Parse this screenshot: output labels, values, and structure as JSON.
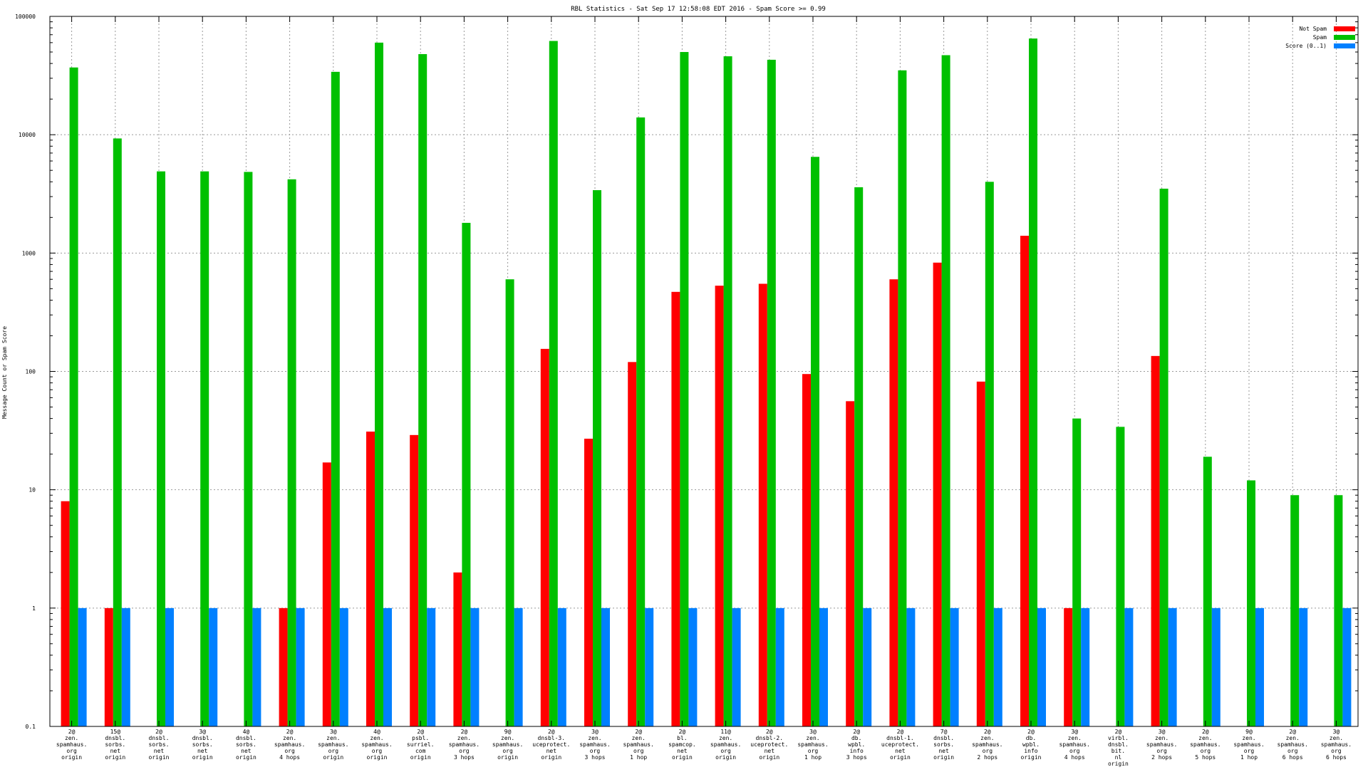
{
  "chart_data": {
    "type": "bar",
    "title": "RBL Statistics - Sat Sep 17 12:58:08 EDT 2016 - Spam Score >= 0.99",
    "ylabel": "Message Count or Spam Score",
    "xlabel": "",
    "yscale": "log",
    "ylim": [
      0.1,
      100000
    ],
    "yticks": [
      {
        "value": 0.1,
        "label": "0.1"
      },
      {
        "value": 1,
        "label": "1"
      },
      {
        "value": 10,
        "label": "10"
      },
      {
        "value": 100,
        "label": "100"
      },
      {
        "value": 1000,
        "label": "1000"
      },
      {
        "value": 10000,
        "label": "10000"
      },
      {
        "value": 100000,
        "label": "100000"
      }
    ],
    "grid": true,
    "legend_position": "top-right",
    "categories": [
      [
        "2@",
        "zen.",
        "spamhaus.",
        "org",
        "origin"
      ],
      [
        "15@",
        "dnsbl.",
        "sorbs.",
        "net",
        "origin"
      ],
      [
        "2@",
        "dnsbl.",
        "sorbs.",
        "net",
        "origin"
      ],
      [
        "3@",
        "dnsbl.",
        "sorbs.",
        "net",
        "origin"
      ],
      [
        "4@",
        "dnsbl.",
        "sorbs.",
        "net",
        "origin"
      ],
      [
        "2@",
        "zen.",
        "spamhaus.",
        "org",
        "4 hops"
      ],
      [
        "3@",
        "zen.",
        "spamhaus.",
        "org",
        "origin"
      ],
      [
        "4@",
        "zen.",
        "spamhaus.",
        "org",
        "origin"
      ],
      [
        "2@",
        "psbl.",
        "surriel.",
        "com",
        "origin"
      ],
      [
        "2@",
        "zen.",
        "spamhaus.",
        "org",
        "3 hops"
      ],
      [
        "9@",
        "zen.",
        "spamhaus.",
        "org",
        "origin"
      ],
      [
        "2@",
        "dnsbl-3.",
        "uceprotect.",
        "net",
        "origin"
      ],
      [
        "3@",
        "zen.",
        "spamhaus.",
        "org",
        "3 hops"
      ],
      [
        "2@",
        "zen.",
        "spamhaus.",
        "org",
        "1 hop"
      ],
      [
        "2@",
        "bl.",
        "spamcop.",
        "net",
        "origin"
      ],
      [
        "11@",
        "zen.",
        "spamhaus.",
        "org",
        "origin"
      ],
      [
        "2@",
        "dnsbl-2.",
        "uceprotect.",
        "net",
        "origin"
      ],
      [
        "3@",
        "zen.",
        "spamhaus.",
        "org",
        "1 hop"
      ],
      [
        "2@",
        "db.",
        "wpbl.",
        "info",
        "3 hops"
      ],
      [
        "2@",
        "dnsbl-1.",
        "uceprotect.",
        "net",
        "origin"
      ],
      [
        "7@",
        "dnsbl.",
        "sorbs.",
        "net",
        "origin"
      ],
      [
        "2@",
        "zen.",
        "spamhaus.",
        "org",
        "2 hops"
      ],
      [
        "2@",
        "db.",
        "wpbl.",
        "info",
        "origin"
      ],
      [
        "3@",
        "zen.",
        "spamhaus.",
        "org",
        "4 hops"
      ],
      [
        "2@",
        "virbl.",
        "dnsbl.",
        "bit.",
        "nl",
        "origin"
      ],
      [
        "3@",
        "zen.",
        "spamhaus.",
        "org",
        "2 hops"
      ],
      [
        "2@",
        "zen.",
        "spamhaus.",
        "org",
        "5 hops"
      ],
      [
        "9@",
        "zen.",
        "spamhaus.",
        "org",
        "1 hop"
      ],
      [
        "2@",
        "zen.",
        "spamhaus.",
        "org",
        "6 hops"
      ],
      [
        "3@",
        "zen.",
        "spamhaus.",
        "org",
        "6 hops"
      ]
    ],
    "series": [
      {
        "name": "Not Spam",
        "color": "#ff0000",
        "values": [
          8,
          1,
          null,
          null,
          null,
          1,
          17,
          31,
          29,
          2,
          null,
          155,
          27,
          120,
          470,
          530,
          550,
          95,
          56,
          600,
          830,
          82,
          1400,
          1,
          null,
          135,
          null,
          null,
          null,
          null
        ]
      },
      {
        "name": "Spam",
        "color": "#00c000",
        "values": [
          37000,
          9300,
          4900,
          4900,
          4850,
          4200,
          34000,
          60000,
          48000,
          1800,
          600,
          62000,
          3400,
          14000,
          50000,
          46000,
          43000,
          6500,
          3600,
          35000,
          47000,
          4000,
          65000,
          40,
          34,
          3500,
          19,
          12,
          9,
          9
        ]
      },
      {
        "name": "Score (0..1)",
        "color": "#0080ff",
        "values": [
          1,
          1,
          1,
          1,
          1,
          1,
          1,
          1,
          1,
          1,
          1,
          1,
          1,
          1,
          1,
          1,
          1,
          1,
          1,
          1,
          1,
          1,
          1,
          1,
          1,
          1,
          1,
          1,
          1,
          1
        ]
      }
    ]
  }
}
